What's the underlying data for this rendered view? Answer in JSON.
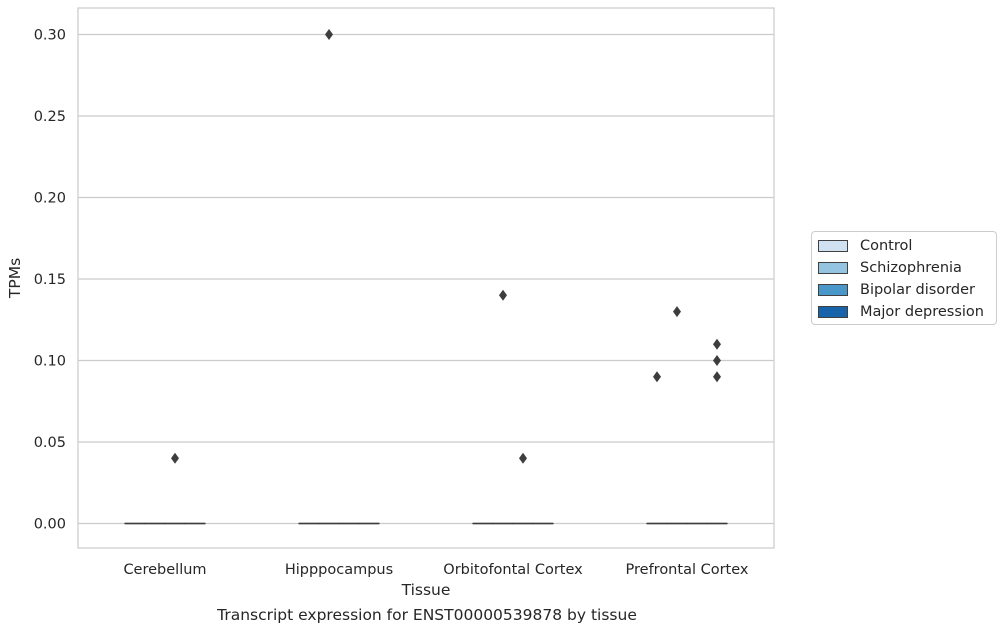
{
  "chart_data": {
    "type": "box",
    "xlabel": "Tissue",
    "ylabel": "TPMs",
    "caption": "Transcript expression for ENST00000539878 by tissue",
    "categories": [
      "Cerebellum",
      "Hipppocampus",
      "Orbitofontal Cortex",
      "Prefrontal Cortex"
    ],
    "ylim": [
      -0.015,
      0.315
    ],
    "yticks": [
      0.0,
      0.05,
      0.1,
      0.15,
      0.2,
      0.25,
      0.3
    ],
    "ytick_labels": [
      "0.00",
      "0.05",
      "0.10",
      "0.15",
      "0.20",
      "0.25",
      "0.30"
    ],
    "grid": true,
    "legend_position": "center-right, outside",
    "series": [
      {
        "name": "Control",
        "color": "#d0e1f2",
        "boxes": [
          {
            "category": "Cerebellum",
            "q1": 0,
            "median": 0,
            "q3": 0,
            "outliers": []
          },
          {
            "category": "Hipppocampus",
            "q1": 0,
            "median": 0,
            "q3": 0,
            "outliers": []
          },
          {
            "category": "Orbitofontal Cortex",
            "q1": 0,
            "median": 0,
            "q3": 0,
            "outliers": []
          },
          {
            "category": "Prefrontal Cortex",
            "q1": 0,
            "median": 0,
            "q3": 0,
            "outliers": [
              0.09
            ]
          }
        ]
      },
      {
        "name": "Schizophrenia",
        "color": "#94c4df",
        "boxes": [
          {
            "category": "Cerebellum",
            "q1": 0,
            "median": 0,
            "q3": 0,
            "outliers": []
          },
          {
            "category": "Hipppocampus",
            "q1": 0,
            "median": 0,
            "q3": 0,
            "outliers": [
              0.3
            ]
          },
          {
            "category": "Orbitofontal Cortex",
            "q1": 0,
            "median": 0,
            "q3": 0,
            "outliers": [
              0.14
            ]
          },
          {
            "category": "Prefrontal Cortex",
            "q1": 0,
            "median": 0,
            "q3": 0,
            "outliers": [
              0.13
            ]
          }
        ]
      },
      {
        "name": "Bipolar disorder",
        "color": "#4a98c9",
        "boxes": [
          {
            "category": "Cerebellum",
            "q1": 0,
            "median": 0,
            "q3": 0,
            "outliers": [
              0.04
            ]
          },
          {
            "category": "Hipppocampus",
            "q1": 0,
            "median": 0,
            "q3": 0,
            "outliers": []
          },
          {
            "category": "Orbitofontal Cortex",
            "q1": 0,
            "median": 0,
            "q3": 0,
            "outliers": [
              0.04
            ]
          },
          {
            "category": "Prefrontal Cortex",
            "q1": 0,
            "median": 0,
            "q3": 0,
            "outliers": []
          }
        ]
      },
      {
        "name": "Major depression",
        "color": "#1764ab",
        "boxes": [
          {
            "category": "Cerebellum",
            "q1": 0,
            "median": 0,
            "q3": 0,
            "outliers": []
          },
          {
            "category": "Hipppocampus",
            "q1": 0,
            "median": 0,
            "q3": 0,
            "outliers": []
          },
          {
            "category": "Orbitofontal Cortex",
            "q1": 0,
            "median": 0,
            "q3": 0,
            "outliers": []
          },
          {
            "category": "Prefrontal Cortex",
            "q1": 0,
            "median": 0,
            "q3": 0,
            "outliers": [
              0.09,
              0.1,
              0.11
            ]
          }
        ]
      }
    ]
  }
}
